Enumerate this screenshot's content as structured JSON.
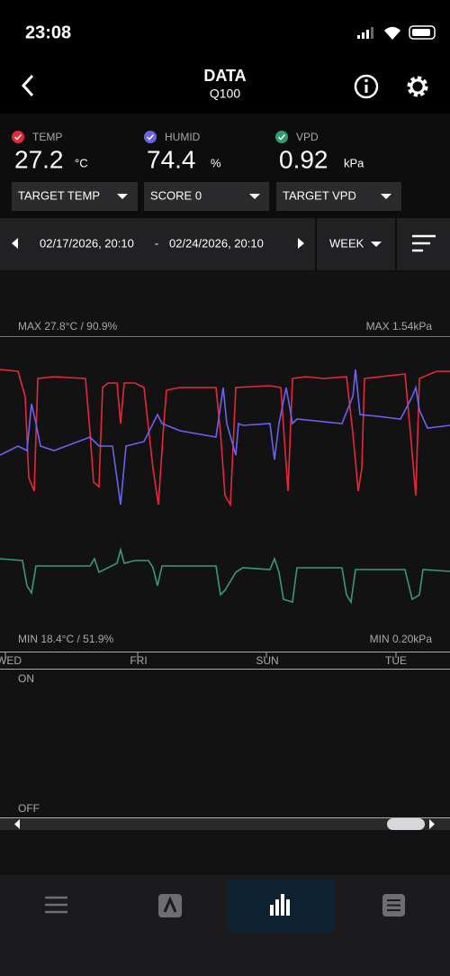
{
  "status_bar": {
    "time": "23:08"
  },
  "header": {
    "title": "DATA",
    "subtitle": "Q100"
  },
  "sensors": [
    {
      "label": "TEMP",
      "value": "27.2",
      "unit": "°C"
    },
    {
      "label": "HUMID",
      "value": "74.4",
      "unit": "%"
    },
    {
      "label": "VPD",
      "value": "0.92",
      "unit": "kPa"
    }
  ],
  "dropdowns": [
    "TARGET TEMP",
    "SCORE 0",
    "TARGET VPD"
  ],
  "date_range": {
    "start": "02/17/2026, 20:10",
    "separator": "-",
    "end": "02/24/2026, 20:10",
    "period": "WEEK"
  },
  "graph": {
    "max_left": "MAX 27.8°C / 90.9%",
    "max_right": "MAX 1.54kPa",
    "min_left": "MIN 18.4°C / 51.9%",
    "min_right": "MIN 0.20kPa",
    "days": [
      "WED",
      "FRI",
      "SUN",
      "TUE"
    ]
  },
  "switch_panel": {
    "on": "ON",
    "off": "OFF"
  }
}
